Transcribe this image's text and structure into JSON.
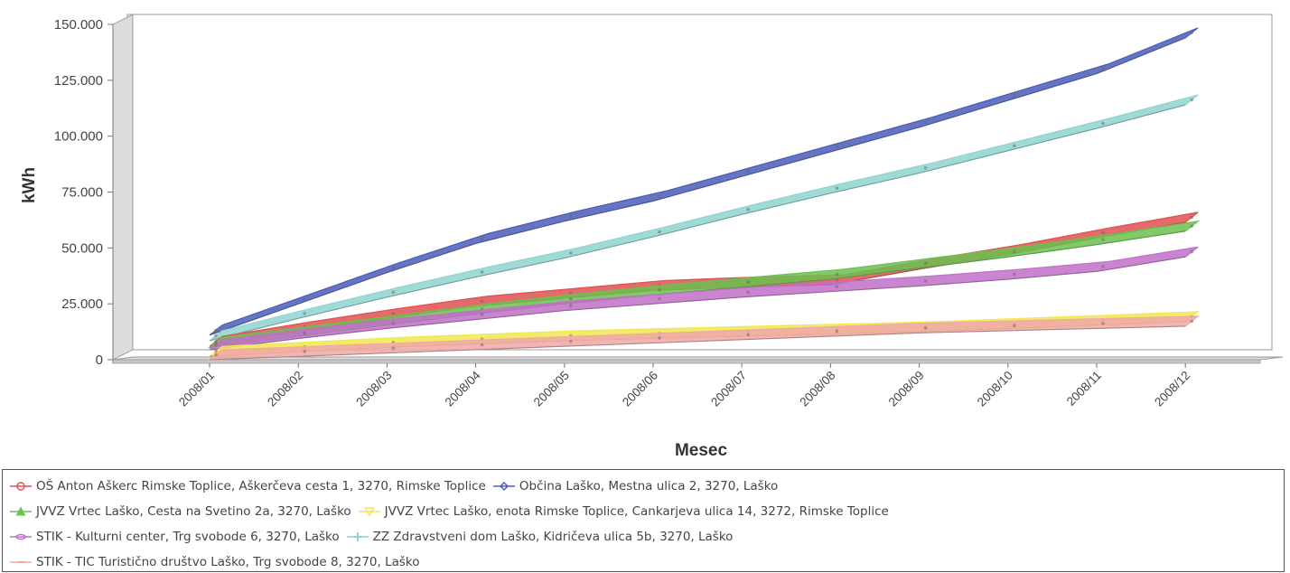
{
  "chart_data": {
    "type": "area",
    "view": "3d",
    "title": "",
    "xlabel": "Mesec",
    "ylabel": "kWh",
    "ylim": [
      0,
      150000
    ],
    "yticks": [
      {
        "value": 0,
        "label": "0"
      },
      {
        "value": 25000,
        "label": "25.000"
      },
      {
        "value": 50000,
        "label": "50.000"
      },
      {
        "value": 75000,
        "label": "75.000"
      },
      {
        "value": 100000,
        "label": "100.000"
      },
      {
        "value": 125000,
        "label": "125.000"
      },
      {
        "value": 150000,
        "label": "150.000"
      }
    ],
    "categories": [
      "2008/01",
      "2008/02",
      "2008/03",
      "2008/04",
      "2008/05",
      "2008/06",
      "2008/07",
      "2008/08",
      "2008/09",
      "2008/10",
      "2008/11",
      "2008/12"
    ],
    "legend_position": "bottom",
    "series": [
      {
        "name": "OŠ Anton Aškerc Rimske Toplice, Aškerčeva cesta 1, 3270, Rimske Toplice",
        "color": "#e05050",
        "marker": "circle",
        "values": [
          6000,
          12500,
          18500,
          24000,
          27500,
          31000,
          32500,
          33500,
          40500,
          47000,
          54500,
          61500
        ]
      },
      {
        "name": "Občina Laško, Mestna ulica 2, 3270, Laško",
        "color": "#4a5cb8",
        "marker": "diamond",
        "values": [
          11000,
          25000,
          39000,
          52000,
          62000,
          71000,
          82000,
          93000,
          104000,
          116000,
          128000,
          144000
        ]
      },
      {
        "name": "JVVZ Vrtec Laško, Cesta na Svetino 2a, 3270, Laško",
        "color": "#6cc050",
        "marker": "triangle",
        "values": [
          5500,
          10500,
          15500,
          20500,
          25000,
          29000,
          32500,
          36000,
          41000,
          46000,
          51500,
          57500
        ]
      },
      {
        "name": "JVVZ Vrtec Laško, enota Rimske Toplice, Cankarjeva ulica 14, 3272, Rimske Toplice",
        "color": "#f0e850",
        "marker": "triangle-down",
        "values": [
          1500,
          3500,
          5500,
          7000,
          8500,
          9500,
          10500,
          11500,
          12500,
          14000,
          15500,
          17000
        ]
      },
      {
        "name": "STIK - Kulturni center, Trg svobode 6, 3270, Laško",
        "color": "#c070c8",
        "marker": "ellipse",
        "values": [
          4500,
          9500,
          14000,
          18000,
          22000,
          25000,
          28000,
          30500,
          33000,
          36000,
          39500,
          46000
        ]
      },
      {
        "name": "ZZ Zdravstveni dom Laško, Kidričeva ulica 5b, 3270, Laško",
        "color": "#8fd4d0",
        "marker": "plus",
        "values": [
          8500,
          18500,
          28000,
          37000,
          45500,
          55000,
          65000,
          74500,
          83500,
          93500,
          103500,
          114000
        ]
      },
      {
        "name": "STIK - TIC Turistično društvo Laško, Trg svobode 8, 3270, Laško",
        "color": "#f0a8a8",
        "marker": "dash",
        "values": [
          0,
          1500,
          3000,
          4500,
          6000,
          7500,
          9000,
          10500,
          12000,
          13000,
          14000,
          15000
        ]
      }
    ]
  },
  "legend": {
    "rows": [
      [
        0,
        1
      ],
      [
        2,
        3
      ],
      [
        4,
        5
      ],
      [
        6
      ]
    ]
  }
}
